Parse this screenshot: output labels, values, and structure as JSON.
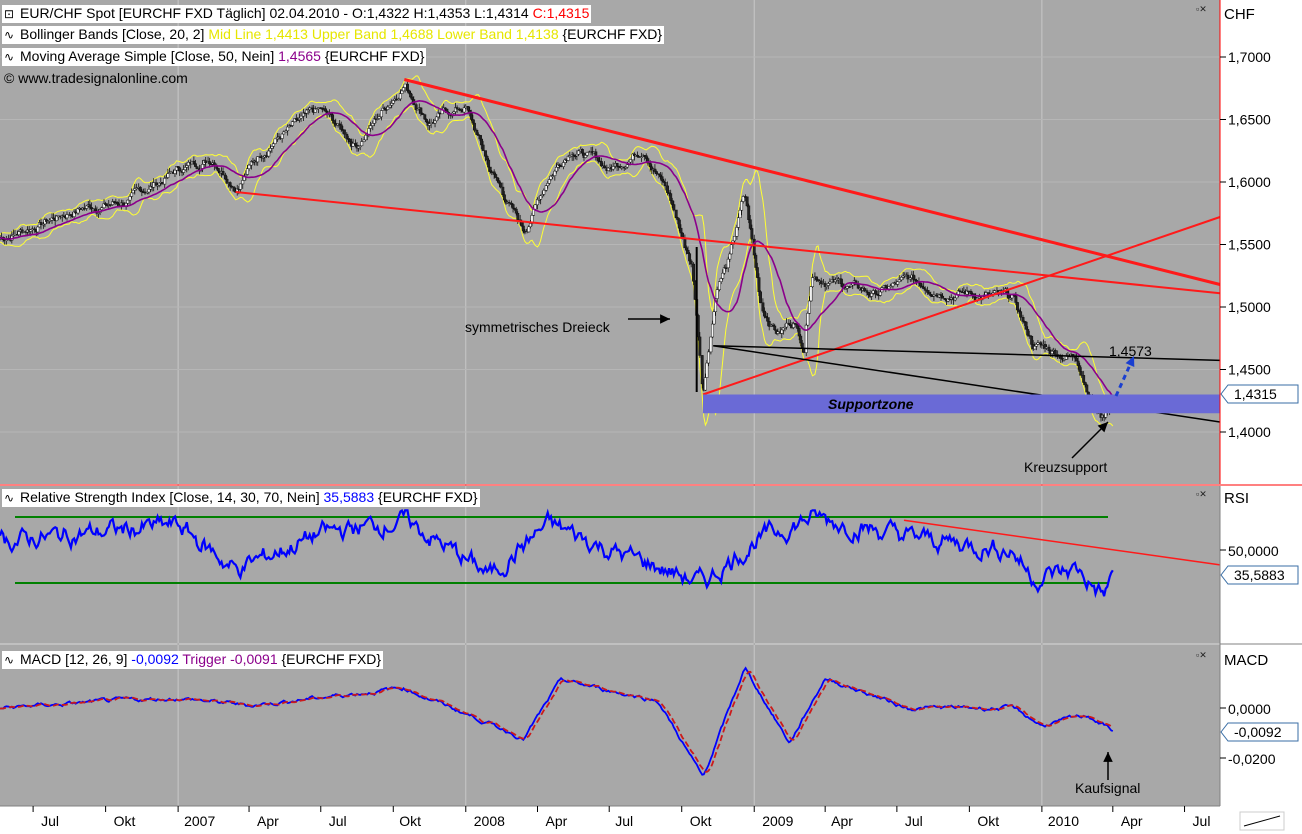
{
  "colors": {
    "panel_bg": "#a8a8a8",
    "axis_bg": "#ffffff",
    "candle_up": "#f5f5f5",
    "candle_down": "#222222",
    "bollinger": "#ffff33",
    "sma": "#8b008b",
    "trendline": "#ff1a1a",
    "rsi": "#0000ff",
    "rsi_levels": "#008000",
    "macd": "#0000ff",
    "trigger": "#cc1a1a",
    "supportzone": "#6a6ad6"
  },
  "main": {
    "title_prefix": "EUR/CHF Spot [EURCHF FXD  Täglich] 02.04.2010 - O:1,4322 H:1,4353 L:1,4314 ",
    "title_close": "C:1,4315",
    "bollinger_prefix": "Bollinger Bands [Close, 20, 2] ",
    "bollinger_values": "Mid Line 1,4413 Upper Band 1,4688 Lower Band 1,4138",
    "bollinger_suffix": " {EURCHF FXD}",
    "sma_prefix": "Moving Average Simple [Close, 50, Nein] ",
    "sma_value": "1,4565",
    "sma_suffix": " {EURCHF FXD}",
    "copyright": "© www.tradesignalonline.com",
    "axis_title": "CHF",
    "last_price": "1,4315",
    "annotations": {
      "triangle": "symmetrisches Dreieck",
      "supportzone": "Supportzone",
      "level": "1,4573",
      "cross_support": "Kreuzsupport"
    }
  },
  "rsi": {
    "header_prefix": "Relative Strength Index [Close, 14, 30, 70, Nein] ",
    "value": "35,5883",
    "header_suffix": " {EURCHF FXD}",
    "axis_title": "RSI",
    "tick": "50,0000",
    "last_value": "35,5883"
  },
  "macd": {
    "header_prefix": "MACD [12, 26, 9] ",
    "value": "-0,0092",
    "trigger_label": " Trigger -0,0091",
    "header_suffix": " {EURCHF FXD}",
    "axis_title": "MACD",
    "tick_zero": "0,0000",
    "tick_neg": "-0,0200",
    "last_value": "-0,0092",
    "annotation": "Kaufsignal"
  },
  "chart_data": [
    {
      "type": "candlestick",
      "title": "EUR/CHF Spot [EURCHF FXD  Täglich] 02.04.2010",
      "ylabel": "CHF",
      "ylim": [
        1.35,
        1.72
      ],
      "x_ticks": [
        "Jul",
        "Okt",
        "2007",
        "Apr",
        "Jul",
        "Okt",
        "2008",
        "Apr",
        "Jul",
        "Okt",
        "2009",
        "Apr",
        "Jul",
        "Okt",
        "2010",
        "Apr",
        "Jul"
      ],
      "y_ticks": [
        "1,4000",
        "1,4500",
        "1,5000",
        "1,5500",
        "1,6000",
        "1,6500",
        "1,7000"
      ],
      "close_path": [
        {
          "x": "2006-05-20",
          "y": 1.555
        },
        {
          "x": "2006-07-01",
          "y": 1.565
        },
        {
          "x": "2006-09-01",
          "y": 1.58
        },
        {
          "x": "2006-11-01",
          "y": 1.585
        },
        {
          "x": "2007-01-01",
          "y": 1.61
        },
        {
          "x": "2007-02-15",
          "y": 1.62
        },
        {
          "x": "2007-03-15",
          "y": 1.6
        },
        {
          "x": "2007-05-01",
          "y": 1.635
        },
        {
          "x": "2007-07-01",
          "y": 1.655
        },
        {
          "x": "2007-08-15",
          "y": 1.63
        },
        {
          "x": "2007-10-15",
          "y": 1.68
        },
        {
          "x": "2007-11-15",
          "y": 1.65
        },
        {
          "x": "2008-01-01",
          "y": 1.66
        },
        {
          "x": "2008-02-01",
          "y": 1.61
        },
        {
          "x": "2008-03-15",
          "y": 1.56
        },
        {
          "x": "2008-04-15",
          "y": 1.605
        },
        {
          "x": "2008-05-15",
          "y": 1.63
        },
        {
          "x": "2008-07-01",
          "y": 1.61
        },
        {
          "x": "2008-08-15",
          "y": 1.63
        },
        {
          "x": "2008-09-15",
          "y": 1.59
        },
        {
          "x": "2008-10-15",
          "y": 1.53
        },
        {
          "x": "2008-10-28",
          "y": 1.435
        },
        {
          "x": "2008-11-15",
          "y": 1.52
        },
        {
          "x": "2008-12-01",
          "y": 1.54
        },
        {
          "x": "2008-12-20",
          "y": 1.59
        },
        {
          "x": "2009-01-10",
          "y": 1.5
        },
        {
          "x": "2009-02-01",
          "y": 1.48
        },
        {
          "x": "2009-02-20",
          "y": 1.49
        },
        {
          "x": "2009-03-05",
          "y": 1.47
        },
        {
          "x": "2009-03-15",
          "y": 1.53
        },
        {
          "x": "2009-04-15",
          "y": 1.52
        },
        {
          "x": "2009-06-01",
          "y": 1.51
        },
        {
          "x": "2009-07-15",
          "y": 1.52
        },
        {
          "x": "2009-09-01",
          "y": 1.515
        },
        {
          "x": "2009-10-15",
          "y": 1.51
        },
        {
          "x": "2009-11-25",
          "y": 1.505
        },
        {
          "x": "2009-12-20",
          "y": 1.47
        },
        {
          "x": "2010-01-15",
          "y": 1.465
        },
        {
          "x": "2010-02-15",
          "y": 1.46
        },
        {
          "x": "2010-03-10",
          "y": 1.42
        },
        {
          "x": "2010-03-20",
          "y": 1.413
        },
        {
          "x": "2010-04-02",
          "y": 1.4315
        }
      ],
      "annotations": [
        {
          "text": "symmetrisches Dreieck"
        },
        {
          "text": "Supportzone",
          "ymin": 1.415,
          "ymax": 1.43
        },
        {
          "text": "1,4573",
          "y": 1.4573
        },
        {
          "text": "Kreuzsupport"
        }
      ]
    },
    {
      "type": "line",
      "title": "Relative Strength Index [Close, 14, 30, 70, Nein]",
      "ylabel": "RSI",
      "levels": [
        30,
        70
      ],
      "last": 35.5883,
      "series": [
        {
          "name": "Relative Strength Index",
          "points": [
            {
              "x": "2006-05-20",
              "y": 55
            },
            {
              "x": "2006-09-01",
              "y": 60
            },
            {
              "x": "2007-01-01",
              "y": 65
            },
            {
              "x": "2007-03-15",
              "y": 38
            },
            {
              "x": "2007-07-01",
              "y": 60
            },
            {
              "x": "2007-10-15",
              "y": 68
            },
            {
              "x": "2008-02-01",
              "y": 35
            },
            {
              "x": "2008-04-15",
              "y": 66
            },
            {
              "x": "2008-07-01",
              "y": 50
            },
            {
              "x": "2008-10-28",
              "y": 30
            },
            {
              "x": "2009-01-01",
              "y": 55
            },
            {
              "x": "2009-03-15",
              "y": 70
            },
            {
              "x": "2009-07-15",
              "y": 58
            },
            {
              "x": "2009-11-25",
              "y": 50
            },
            {
              "x": "2009-12-20",
              "y": 33
            },
            {
              "x": "2010-02-15",
              "y": 38
            },
            {
              "x": "2010-03-20",
              "y": 22
            },
            {
              "x": "2010-04-02",
              "y": 35.5883
            }
          ]
        }
      ]
    },
    {
      "type": "line",
      "title": "MACD [12, 26, 9]",
      "ylabel": "MACD",
      "y_ticks": [
        "0,0000",
        "-0,0200"
      ],
      "series": [
        {
          "name": "MACD",
          "points": [
            {
              "x": "2006-05-20",
              "y": 0.0
            },
            {
              "x": "2006-09-01",
              "y": 0.002
            },
            {
              "x": "2007-01-01",
              "y": 0.004
            },
            {
              "x": "2007-04-01",
              "y": 0.001
            },
            {
              "x": "2007-10-15",
              "y": 0.008
            },
            {
              "x": "2008-03-15",
              "y": -0.012
            },
            {
              "x": "2008-05-01",
              "y": 0.011
            },
            {
              "x": "2008-09-01",
              "y": 0.003
            },
            {
              "x": "2008-10-28",
              "y": -0.028
            },
            {
              "x": "2008-12-20",
              "y": 0.016
            },
            {
              "x": "2009-02-15",
              "y": -0.014
            },
            {
              "x": "2009-04-01",
              "y": 0.012
            },
            {
              "x": "2009-07-15",
              "y": 0.0
            },
            {
              "x": "2009-11-25",
              "y": 0.0
            },
            {
              "x": "2010-01-01",
              "y": -0.007
            },
            {
              "x": "2010-03-01",
              "y": -0.003
            },
            {
              "x": "2010-04-02",
              "y": -0.0092
            }
          ]
        },
        {
          "name": "Trigger",
          "last": -0.0091
        }
      ],
      "annotations": [
        {
          "text": "Kaufsignal"
        }
      ]
    }
  ]
}
